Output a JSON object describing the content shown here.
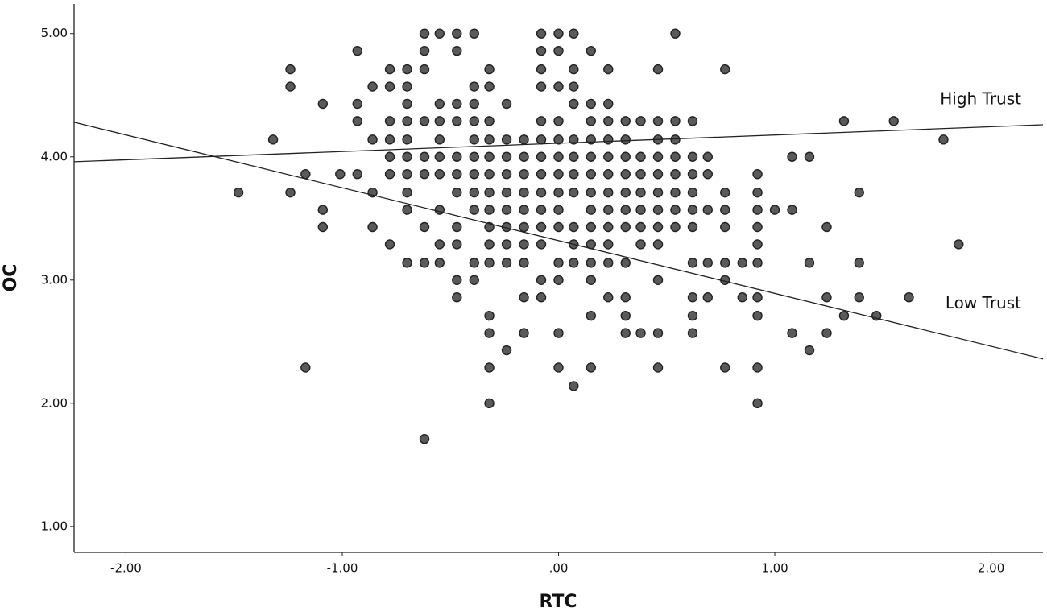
{
  "chart_data": {
    "type": "scatter",
    "x_label": "RTC",
    "y_label": "OC",
    "xlim": [
      -2.24,
      2.24
    ],
    "ylim": [
      0.79,
      5.24
    ],
    "xticks": [
      {
        "value": -2,
        "label": "-2.00"
      },
      {
        "value": -1,
        "label": "-1.00"
      },
      {
        "value": 0,
        "label": ".00"
      },
      {
        "value": 1,
        "label": "1.00"
      },
      {
        "value": 2,
        "label": "2.00"
      }
    ],
    "yticks": [
      {
        "value": 1,
        "label": "1.00"
      },
      {
        "value": 2,
        "label": "2.00"
      },
      {
        "value": 3,
        "label": "3.00"
      },
      {
        "value": 4,
        "label": "4.00"
      },
      {
        "value": 5,
        "label": "5.00"
      }
    ],
    "color": "#5a5a5a",
    "x": [
      -1.48,
      -1.32,
      -1.24,
      -1.24,
      -1.24,
      -1.17,
      -1.17,
      -1.09,
      -1.09,
      -1.09,
      -1.01,
      -0.93,
      -0.93,
      -0.93,
      -0.93,
      -0.86,
      -0.86,
      -0.86,
      -0.86,
      -0.78,
      -0.78,
      -0.78,
      -0.78,
      -0.78,
      -0.78,
      -0.78,
      -0.7,
      -0.7,
      -0.7,
      -0.7,
      -0.7,
      -0.7,
      -0.7,
      -0.7,
      -0.7,
      -0.7,
      -0.62,
      -0.62,
      -0.62,
      -0.62,
      -0.62,
      -0.62,
      -0.62,
      -0.62,
      -0.62,
      -0.55,
      -0.55,
      -0.55,
      -0.55,
      -0.55,
      -0.55,
      -0.55,
      -0.55,
      -0.55,
      -0.47,
      -0.47,
      -0.47,
      -0.47,
      -0.47,
      -0.47,
      -0.47,
      -0.47,
      -0.47,
      -0.47,
      -0.47,
      -0.39,
      -0.39,
      -0.39,
      -0.39,
      -0.39,
      -0.39,
      -0.39,
      -0.39,
      -0.39,
      -0.39,
      -0.39,
      -0.32,
      -0.32,
      -0.32,
      -0.32,
      -0.32,
      -0.32,
      -0.32,
      -0.32,
      -0.32,
      -0.32,
      -0.32,
      -0.32,
      -0.32,
      -0.32,
      -0.32,
      -0.24,
      -0.24,
      -0.24,
      -0.24,
      -0.24,
      -0.24,
      -0.24,
      -0.24,
      -0.24,
      -0.24,
      -0.16,
      -0.16,
      -0.16,
      -0.16,
      -0.16,
      -0.16,
      -0.16,
      -0.16,
      -0.16,
      -0.16,
      -0.08,
      -0.08,
      -0.08,
      -0.08,
      -0.08,
      -0.08,
      -0.08,
      -0.08,
      -0.08,
      -0.08,
      -0.08,
      -0.08,
      -0.08,
      -0.08,
      0.0,
      0.0,
      0.0,
      0.0,
      0.0,
      0.0,
      0.0,
      0.0,
      0.0,
      0.0,
      0.0,
      0.0,
      0.0,
      0.0,
      0.07,
      0.07,
      0.07,
      0.07,
      0.07,
      0.07,
      0.07,
      0.07,
      0.07,
      0.07,
      0.07,
      0.07,
      0.15,
      0.15,
      0.15,
      0.15,
      0.15,
      0.15,
      0.15,
      0.15,
      0.15,
      0.15,
      0.15,
      0.15,
      0.15,
      0.15,
      0.23,
      0.23,
      0.23,
      0.23,
      0.23,
      0.23,
      0.23,
      0.23,
      0.23,
      0.23,
      0.23,
      0.23,
      0.31,
      0.31,
      0.31,
      0.31,
      0.31,
      0.31,
      0.31,
      0.31,
      0.31,
      0.31,
      0.31,
      0.38,
      0.38,
      0.38,
      0.38,
      0.38,
      0.38,
      0.38,
      0.38,
      0.46,
      0.46,
      0.46,
      0.46,
      0.46,
      0.46,
      0.46,
      0.46,
      0.46,
      0.46,
      0.46,
      0.46,
      0.54,
      0.54,
      0.54,
      0.54,
      0.54,
      0.54,
      0.54,
      0.54,
      0.62,
      0.62,
      0.62,
      0.62,
      0.62,
      0.62,
      0.62,
      0.62,
      0.62,
      0.62,
      0.69,
      0.69,
      0.69,
      0.69,
      0.69,
      0.77,
      0.77,
      0.77,
      0.77,
      0.77,
      0.77,
      0.77,
      0.85,
      0.85,
      0.92,
      0.92,
      0.92,
      0.92,
      0.92,
      0.92,
      0.92,
      0.92,
      0.92,
      0.92,
      1.0,
      1.08,
      1.08,
      1.08,
      1.16,
      1.16,
      1.16,
      1.24,
      1.24,
      1.24,
      1.32,
      1.32,
      1.39,
      1.39,
      1.39,
      1.47,
      1.55,
      1.62,
      1.78,
      1.85
    ],
    "y": [
      3.71,
      4.14,
      4.71,
      4.57,
      3.71,
      3.86,
      2.29,
      4.43,
      3.57,
      3.43,
      3.86,
      4.86,
      4.43,
      4.29,
      3.86,
      4.57,
      4.14,
      3.71,
      3.43,
      4.71,
      4.57,
      4.29,
      4.14,
      4.0,
      3.86,
      3.29,
      4.71,
      4.57,
      4.43,
      4.29,
      4.14,
      4.0,
      3.86,
      3.71,
      3.57,
      3.14,
      5.0,
      4.86,
      4.71,
      4.29,
      4.0,
      3.86,
      3.43,
      3.14,
      1.71,
      5.0,
      4.43,
      4.29,
      4.14,
      4.0,
      3.86,
      3.57,
      3.29,
      3.14,
      5.0,
      4.86,
      4.43,
      4.29,
      4.0,
      3.86,
      3.71,
      3.43,
      3.29,
      3.0,
      2.86,
      5.0,
      4.57,
      4.43,
      4.29,
      4.14,
      4.0,
      3.86,
      3.71,
      3.57,
      3.14,
      3.0,
      4.71,
      4.57,
      4.29,
      4.14,
      4.0,
      3.86,
      3.71,
      3.57,
      3.43,
      3.29,
      3.14,
      2.71,
      2.57,
      2.29,
      2.0,
      4.43,
      4.14,
      4.0,
      3.86,
      3.71,
      3.57,
      3.43,
      3.29,
      3.14,
      2.43,
      4.14,
      4.0,
      3.86,
      3.71,
      3.57,
      3.43,
      3.29,
      3.14,
      2.86,
      2.57,
      5.0,
      4.86,
      4.71,
      4.57,
      4.29,
      4.14,
      4.0,
      3.86,
      3.71,
      3.57,
      3.43,
      3.29,
      3.0,
      2.86,
      5.0,
      4.86,
      4.57,
      4.29,
      4.14,
      4.0,
      3.86,
      3.71,
      3.57,
      3.43,
      3.14,
      3.0,
      2.57,
      2.29,
      5.0,
      4.71,
      4.57,
      4.43,
      4.14,
      4.0,
      3.86,
      3.71,
      3.43,
      3.29,
      3.14,
      2.14,
      4.86,
      4.43,
      4.29,
      4.14,
      4.0,
      3.86,
      3.71,
      3.57,
      3.43,
      3.29,
      3.14,
      3.0,
      2.71,
      2.29,
      4.71,
      4.43,
      4.29,
      4.14,
      4.0,
      3.86,
      3.71,
      3.57,
      3.43,
      3.29,
      3.14,
      2.86,
      4.29,
      4.14,
      4.0,
      3.86,
      3.71,
      3.57,
      3.43,
      3.14,
      2.86,
      2.71,
      2.57,
      4.29,
      4.0,
      3.86,
      3.71,
      3.57,
      3.43,
      3.29,
      2.57,
      4.71,
      4.29,
      4.14,
      4.0,
      3.86,
      3.71,
      3.57,
      3.43,
      3.29,
      3.0,
      2.57,
      2.29,
      5.0,
      4.29,
      4.14,
      4.0,
      3.86,
      3.71,
      3.57,
      3.43,
      4.29,
      4.0,
      3.86,
      3.71,
      3.57,
      3.43,
      3.14,
      2.86,
      2.71,
      2.57,
      4.0,
      3.86,
      3.57,
      3.14,
      2.86,
      4.71,
      3.71,
      3.57,
      3.43,
      3.14,
      3.0,
      2.29,
      3.14,
      2.86,
      3.86,
      3.71,
      3.57,
      3.43,
      3.29,
      3.14,
      2.86,
      2.71,
      2.29,
      2.0,
      3.57,
      4.0,
      3.57,
      2.57,
      4.0,
      3.14,
      2.43,
      3.43,
      2.86,
      2.57,
      4.29,
      2.71,
      3.71,
      3.14,
      2.86,
      2.71,
      4.29,
      2.86,
      4.14,
      3.29
    ],
    "lines": [
      {
        "name": "High Trust",
        "x": [
          -2.24,
          2.24
        ],
        "y": [
          3.96,
          4.26
        ]
      },
      {
        "name": "Low Trust",
        "x": [
          -2.24,
          2.24
        ],
        "y": [
          4.28,
          2.36
        ]
      }
    ]
  }
}
